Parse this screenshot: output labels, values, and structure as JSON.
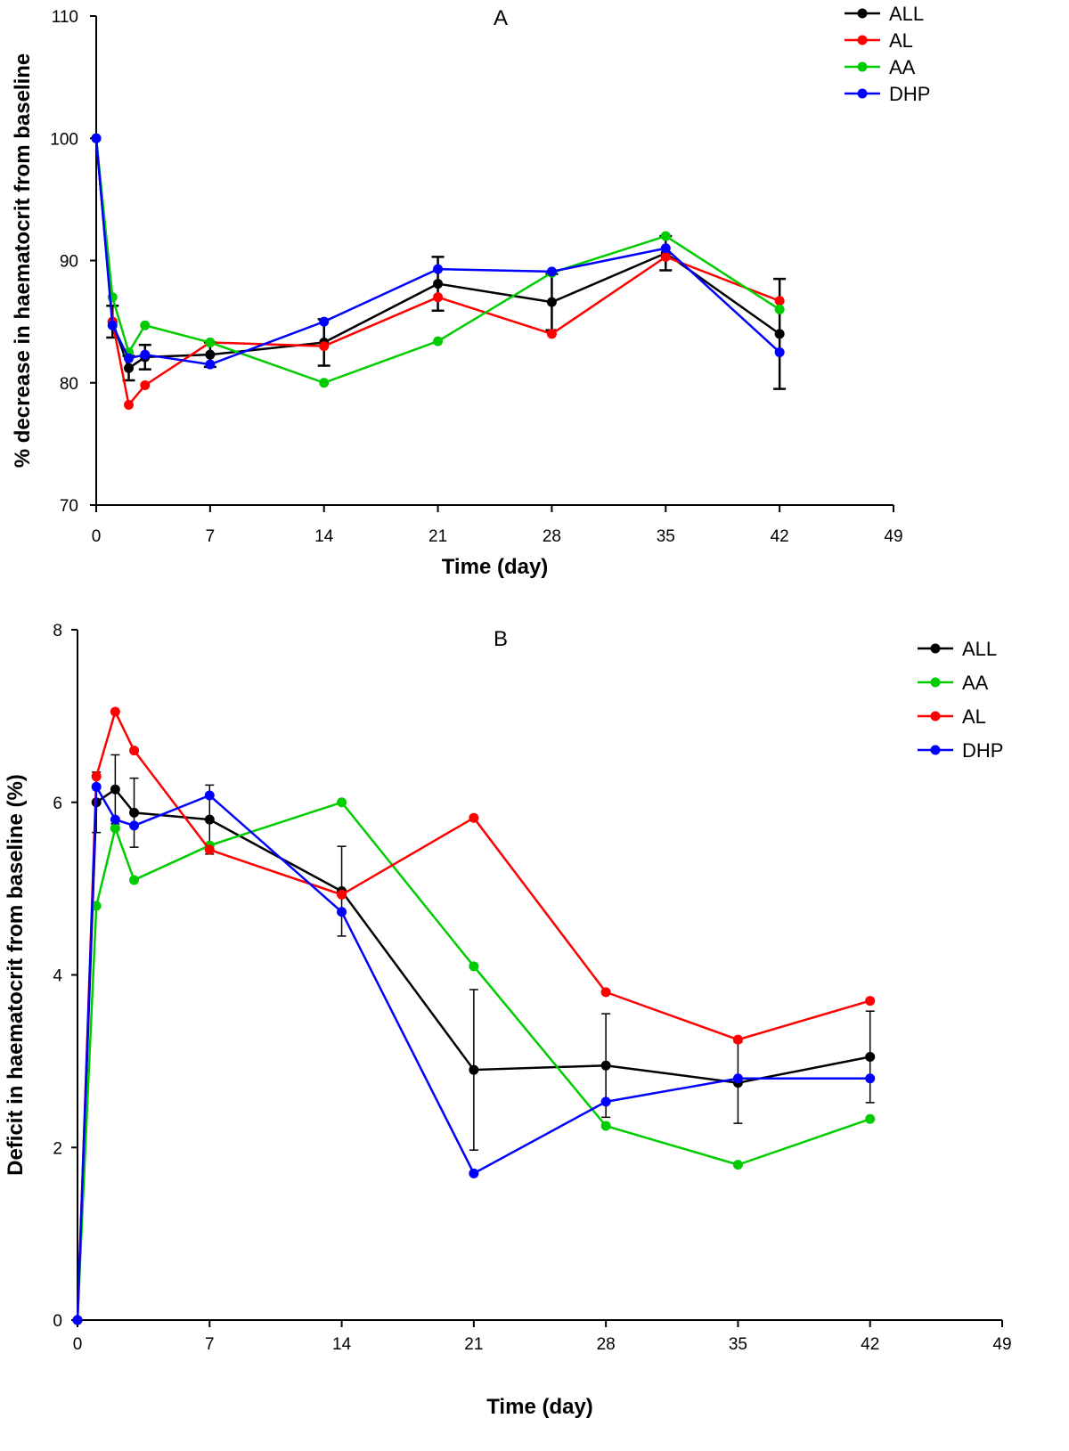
{
  "chart_data": [
    {
      "type": "line",
      "title": "A",
      "xlabel": "Time (day)",
      "ylabel": "% decrease in haematocrit from baseline",
      "xlim": [
        0,
        49
      ],
      "ylim": [
        70,
        110
      ],
      "xticks": [
        0,
        7,
        14,
        21,
        28,
        35,
        42,
        49
      ],
      "yticks": [
        70,
        80,
        90,
        100,
        110
      ],
      "legend_position": "top-right",
      "series": [
        {
          "name": "ALL",
          "color": "#000000",
          "x": [
            0,
            1,
            2,
            3,
            7,
            14,
            21,
            28,
            35,
            42
          ],
          "y": [
            100,
            85,
            81.2,
            82.1,
            82.3,
            83.3,
            88.1,
            86.6,
            90.6,
            84.0
          ],
          "error": [
            0,
            1.3,
            1.0,
            1.0,
            1.0,
            1.9,
            2.2,
            2.3,
            1.4,
            4.5
          ]
        },
        {
          "name": "AL",
          "color": "#ff0000",
          "x": [
            0,
            1,
            2,
            3,
            7,
            14,
            21,
            28,
            35,
            42
          ],
          "y": [
            100,
            85.0,
            78.2,
            79.8,
            83.3,
            83.0,
            87.0,
            84.0,
            90.3,
            86.7
          ]
        },
        {
          "name": "AA",
          "color": "#00cc00",
          "x": [
            0,
            1,
            2,
            3,
            7,
            14,
            21,
            28,
            35,
            42
          ],
          "y": [
            100,
            87.0,
            82.5,
            84.7,
            83.3,
            80.0,
            83.4,
            89.0,
            92.0,
            86.0
          ]
        },
        {
          "name": "DHP",
          "color": "#0000ff",
          "x": [
            0,
            1,
            2,
            3,
            7,
            14,
            21,
            28,
            35,
            42
          ],
          "y": [
            100,
            84.7,
            82.0,
            82.3,
            81.5,
            85.0,
            89.3,
            89.1,
            91.0,
            82.5
          ]
        }
      ]
    },
    {
      "type": "line",
      "title": "B",
      "xlabel": "Time (day)",
      "ylabel": "Deficit in haematocrit from baseline (%)",
      "xlim": [
        0,
        49
      ],
      "ylim": [
        0,
        8
      ],
      "xticks": [
        0,
        7,
        14,
        21,
        28,
        35,
        42,
        49
      ],
      "yticks": [
        0,
        2,
        4,
        6,
        8
      ],
      "legend_position": "top-right",
      "series": [
        {
          "name": "ALL",
          "color": "#000000",
          "x": [
            0,
            1,
            2,
            3,
            7,
            14,
            21,
            28,
            35,
            42
          ],
          "y": [
            0,
            6.0,
            6.15,
            5.88,
            5.8,
            4.97,
            2.9,
            2.95,
            2.75,
            3.05
          ],
          "error": [
            0,
            0.35,
            0.4,
            0.4,
            0.4,
            0.52,
            0.93,
            0.6,
            0.47,
            0.53
          ]
        },
        {
          "name": "AA",
          "color": "#00cc00",
          "x": [
            0,
            1,
            2,
            3,
            7,
            14,
            21,
            28,
            35,
            42
          ],
          "y": [
            0,
            4.8,
            5.7,
            5.1,
            5.5,
            6.0,
            4.1,
            2.25,
            1.8,
            2.33
          ]
        },
        {
          "name": "AL",
          "color": "#ff0000",
          "x": [
            0,
            1,
            2,
            3,
            7,
            14,
            21,
            28,
            35,
            42
          ],
          "y": [
            0,
            6.3,
            7.05,
            6.6,
            5.45,
            4.93,
            5.82,
            3.8,
            3.25,
            3.7
          ]
        },
        {
          "name": "DHP",
          "color": "#0000ff",
          "x": [
            0,
            1,
            2,
            3,
            7,
            14,
            21,
            28,
            35,
            42
          ],
          "y": [
            0,
            6.18,
            5.8,
            5.73,
            6.08,
            4.73,
            1.7,
            2.53,
            2.8,
            2.8
          ]
        }
      ]
    }
  ]
}
